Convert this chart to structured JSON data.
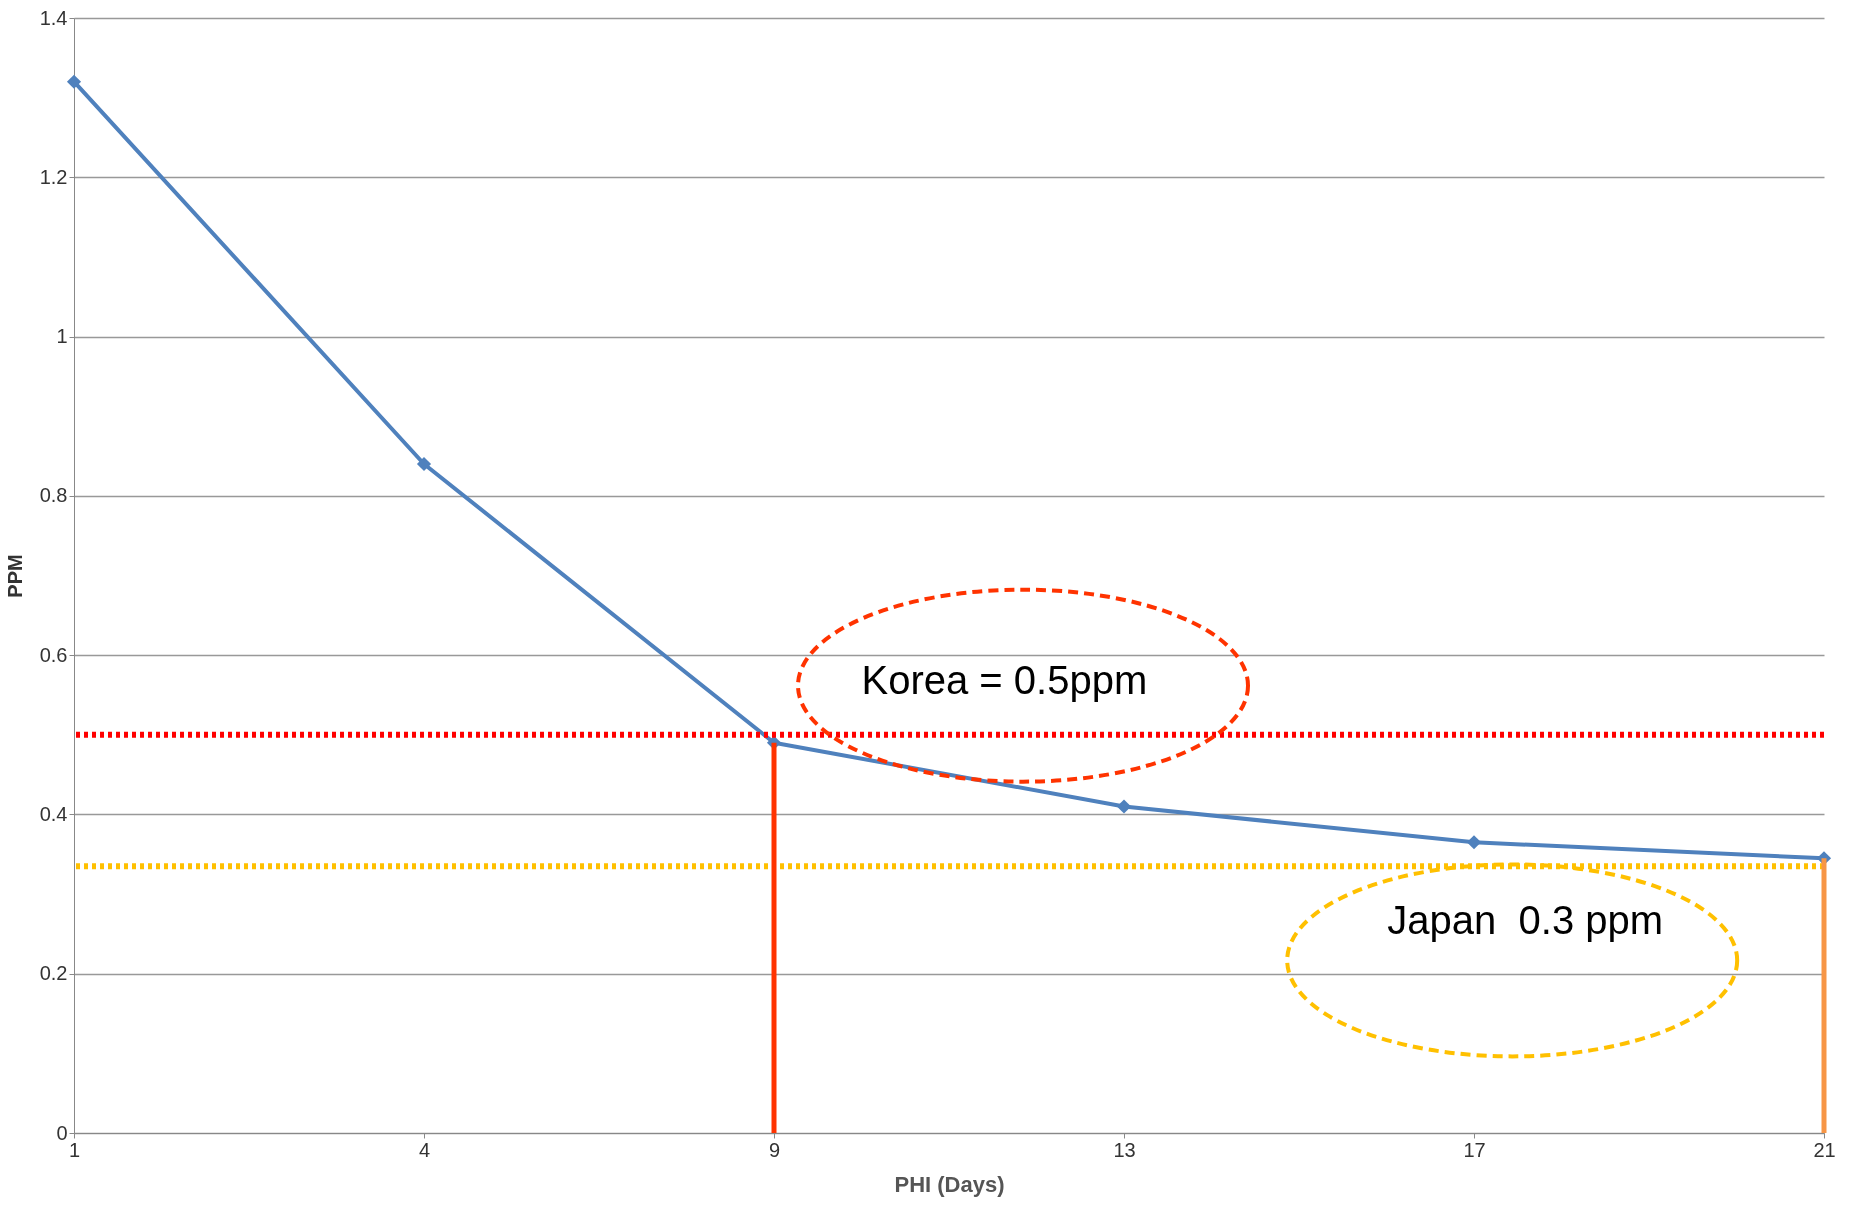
{
  "chart_data": {
    "type": "line",
    "xlabel": "PHI  (Days)",
    "ylabel": "PPM",
    "categories": [
      "1",
      "4",
      "9",
      "13",
      "17",
      "21"
    ],
    "series": [
      {
        "color": "#4f81bd",
        "values": [
          1.32,
          0.84,
          0.49,
          0.41,
          0.365,
          0.345
        ]
      }
    ],
    "ylim": [
      0,
      1.4
    ],
    "yticks": [
      0,
      0.2,
      0.4,
      0.6,
      0.8,
      1,
      1.2,
      1.4
    ],
    "grid": "y",
    "marker": "diamond",
    "line_style": "solid",
    "ref_lines": [
      {
        "axis": "y",
        "value": 0.5,
        "color": "#ff0000",
        "line_style": "dotted"
      },
      {
        "axis": "y",
        "value": 0.335,
        "color": "#ffc000",
        "line_style": "dotted"
      },
      {
        "axis": "x",
        "value": "9",
        "color": "#ff3300",
        "line_style": "solid"
      },
      {
        "axis": "x",
        "value": "21",
        "color": "#f79646",
        "line_style": "solid"
      }
    ],
    "annotations": [
      "Korea = 0.5ppm",
      "Japan  0.3 ppm"
    ]
  }
}
